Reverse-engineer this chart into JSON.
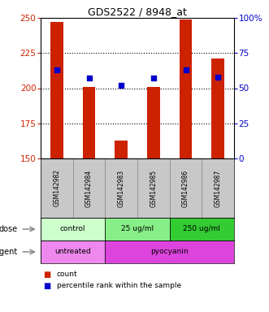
{
  "title": "GDS2522 / 8948_at",
  "samples": [
    "GSM142982",
    "GSM142984",
    "GSM142983",
    "GSM142985",
    "GSM142986",
    "GSM142987"
  ],
  "count_values": [
    247,
    201,
    163,
    201,
    249,
    221
  ],
  "percentile_values": [
    63,
    57,
    52,
    57,
    63,
    58
  ],
  "ylim_left": [
    150,
    250
  ],
  "ylim_right": [
    0,
    100
  ],
  "yticks_left": [
    150,
    175,
    200,
    225,
    250
  ],
  "yticks_right": [
    0,
    25,
    50,
    75,
    100
  ],
  "ytick_right_labels": [
    "0",
    "25",
    "50",
    "75",
    "100%"
  ],
  "bar_color": "#cc2200",
  "dot_color": "#0000cc",
  "dose_labels": [
    {
      "label": "control",
      "span": [
        0,
        2
      ],
      "color": "#ccffcc"
    },
    {
      "label": "25 ug/ml",
      "span": [
        2,
        4
      ],
      "color": "#88ee88"
    },
    {
      "label": "250 ug/ml",
      "span": [
        4,
        6
      ],
      "color": "#33cc33"
    }
  ],
  "agent_labels": [
    {
      "label": "untreated",
      "span": [
        0,
        2
      ],
      "color": "#ee88ee"
    },
    {
      "label": "pyocyanin",
      "span": [
        2,
        6
      ],
      "color": "#dd44dd"
    }
  ],
  "dose_row_label": "dose",
  "agent_row_label": "agent",
  "legend_count": "count",
  "legend_pct": "percentile rank within the sample",
  "tick_label_color_left": "#cc2200",
  "tick_label_color_right": "#0000cc",
  "bar_bottom": 150,
  "sample_bg_color": "#c8c8c8",
  "sample_border_color": "#888888",
  "gridlines": [
    175,
    200,
    225
  ]
}
